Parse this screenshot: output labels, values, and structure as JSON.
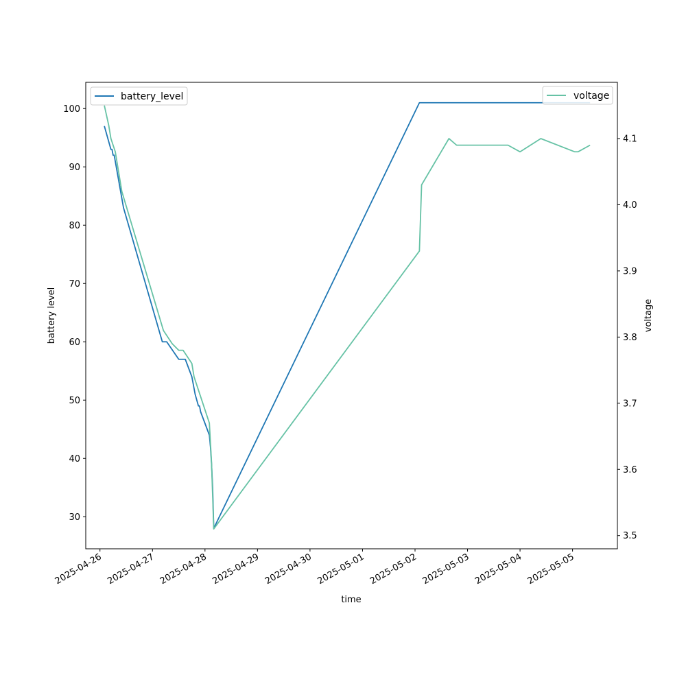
{
  "chart_data": {
    "type": "line",
    "xlabel": "time",
    "ylabel_left": "battery level",
    "ylabel_right": "voltage",
    "x_ticks": [
      "2025-04-26",
      "2025-04-27",
      "2025-04-28",
      "2025-04-29",
      "2025-04-30",
      "2025-05-01",
      "2025-05-02",
      "2025-05-03",
      "2025-05-04",
      "2025-05-05"
    ],
    "xlim": [
      "2025-04-25T17:30",
      "2025-05-05T20:30"
    ],
    "ylim_left": [
      24.5,
      104.5
    ],
    "ylim_right": [
      3.48,
      4.185
    ],
    "y_ticks_left": [
      "30",
      "40",
      "50",
      "60",
      "70",
      "80",
      "90",
      "100"
    ],
    "y_ticks_right": [
      "3.5",
      "3.6",
      "3.7",
      "3.8",
      "3.9",
      "4.0",
      "4.1"
    ],
    "grid": false,
    "colors": {
      "battery_level": "#1f77b4",
      "voltage": "#66c2a5"
    },
    "series": [
      {
        "name": "battery_level",
        "axis": "left",
        "points": [
          [
            "2025-04-26T02:00",
            97
          ],
          [
            "2025-04-26T05:00",
            93
          ],
          [
            "2025-04-26T05:30",
            93
          ],
          [
            "2025-04-26T06:00",
            92
          ],
          [
            "2025-04-26T06:30",
            92
          ],
          [
            "2025-04-26T10:45",
            83
          ],
          [
            "2025-04-27T04:30",
            60
          ],
          [
            "2025-04-27T06:30",
            60
          ],
          [
            "2025-04-27T12:00",
            57
          ],
          [
            "2025-04-27T15:00",
            57
          ],
          [
            "2025-04-27T18:00",
            54
          ],
          [
            "2025-04-27T19:30",
            51
          ],
          [
            "2025-04-27T21:00",
            49
          ],
          [
            "2025-04-27T21:30",
            49
          ],
          [
            "2025-04-27T22:00",
            48
          ],
          [
            "2025-04-28T02:00",
            44
          ],
          [
            "2025-04-28T02:30",
            42
          ],
          [
            "2025-04-28T03:00",
            39
          ],
          [
            "2025-04-28T03:30",
            35
          ],
          [
            "2025-04-28T04:00",
            28
          ],
          [
            "2025-05-02T02:00",
            101
          ],
          [
            "2025-05-05T08:00",
            101
          ]
        ]
      },
      {
        "name": "voltage",
        "axis": "right",
        "points": [
          [
            "2025-04-26T02:00",
            4.15
          ],
          [
            "2025-04-26T04:00",
            4.12
          ],
          [
            "2025-04-26T05:00",
            4.1
          ],
          [
            "2025-04-26T06:00",
            4.09
          ],
          [
            "2025-04-26T07:00",
            4.08
          ],
          [
            "2025-04-26T08:30",
            4.05
          ],
          [
            "2025-04-26T10:00",
            4.02
          ],
          [
            "2025-04-27T05:00",
            3.81
          ],
          [
            "2025-04-27T09:00",
            3.79
          ],
          [
            "2025-04-27T12:00",
            3.78
          ],
          [
            "2025-04-27T14:00",
            3.78
          ],
          [
            "2025-04-27T16:00",
            3.77
          ],
          [
            "2025-04-27T18:00",
            3.76
          ],
          [
            "2025-04-27T19:00",
            3.74
          ],
          [
            "2025-04-27T20:00",
            3.73
          ],
          [
            "2025-04-27T22:00",
            3.71
          ],
          [
            "2025-04-28T02:00",
            3.67
          ],
          [
            "2025-04-28T03:00",
            3.61
          ],
          [
            "2025-04-28T04:00",
            3.51
          ],
          [
            "2025-05-02T02:00",
            3.93
          ],
          [
            "2025-05-02T03:00",
            4.03
          ],
          [
            "2025-05-02T15:30",
            4.1
          ],
          [
            "2025-05-02T19:00",
            4.09
          ],
          [
            "2025-05-02T20:00",
            4.09
          ],
          [
            "2025-05-02T23:00",
            4.09
          ],
          [
            "2025-05-03T01:00",
            4.09
          ],
          [
            "2025-05-03T03:00",
            4.09
          ],
          [
            "2025-05-03T18:30",
            4.09
          ],
          [
            "2025-05-04T00:00",
            4.08
          ],
          [
            "2025-05-04T09:30",
            4.1
          ],
          [
            "2025-05-05T01:00",
            4.08
          ],
          [
            "2025-05-05T02:30",
            4.08
          ],
          [
            "2025-05-05T08:00",
            4.09
          ]
        ]
      }
    ]
  }
}
